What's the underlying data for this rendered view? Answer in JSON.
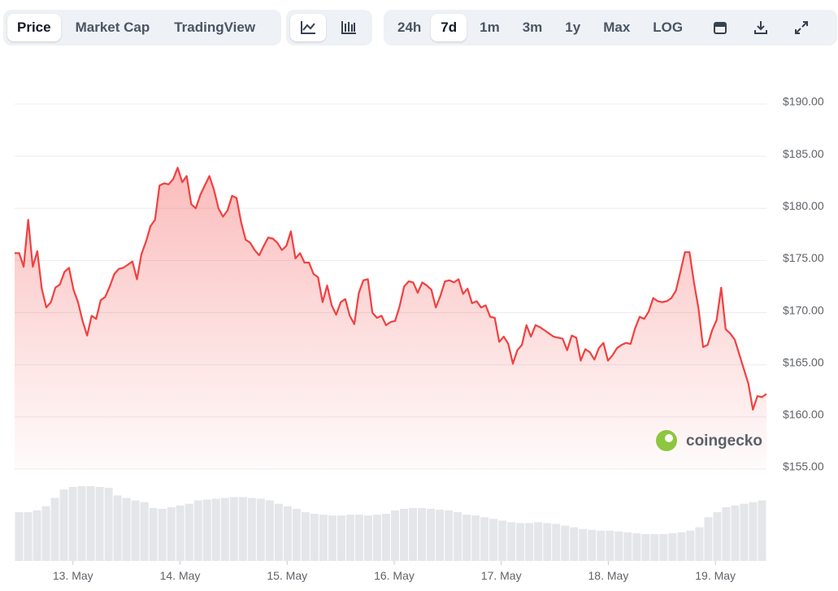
{
  "toolbar": {
    "views": [
      "Price",
      "Market Cap",
      "TradingView"
    ],
    "ranges": [
      "24h",
      "7d",
      "1m",
      "3m",
      "1y",
      "Max",
      "LOG"
    ]
  },
  "watermark": "coingecko",
  "chart_data": {
    "type": "line",
    "color": "#f2403f",
    "area": true,
    "grid": true,
    "xlim": [
      12.455,
      19.477
    ],
    "xticks": [
      {
        "value": 13,
        "label": "13. May"
      },
      {
        "value": 14,
        "label": "14. May"
      },
      {
        "value": 15,
        "label": "15. May"
      },
      {
        "value": 16,
        "label": "16. May"
      },
      {
        "value": 17,
        "label": "17. May"
      },
      {
        "value": 18,
        "label": "18. May"
      },
      {
        "value": 19,
        "label": "19. May"
      }
    ],
    "ylim": [
      155,
      190
    ],
    "yticks": [
      {
        "value": 155,
        "label": "$155.00"
      },
      {
        "value": 160,
        "label": "$160.00"
      },
      {
        "value": 165,
        "label": "$165.00"
      },
      {
        "value": 170,
        "label": "$170.00"
      },
      {
        "value": 175,
        "label": "$175.00"
      },
      {
        "value": 180,
        "label": "$180.00"
      },
      {
        "value": 185,
        "label": "$185.00"
      },
      {
        "value": 190,
        "label": "$190.00"
      }
    ],
    "values": [
      175.7,
      175.7,
      174.4,
      178.9,
      174.4,
      175.9,
      172.3,
      170.5,
      171.0,
      172.4,
      172.7,
      173.9,
      174.3,
      172.2,
      171.0,
      169.2,
      167.8,
      169.7,
      169.4,
      171.2,
      171.5,
      172.5,
      173.7,
      174.2,
      174.3,
      174.6,
      174.9,
      173.2,
      175.6,
      176.8,
      178.3,
      178.9,
      182.2,
      182.4,
      182.3,
      182.8,
      183.9,
      182.5,
      183.1,
      180.4,
      180.0,
      181.3,
      182.2,
      183.1,
      181.8,
      180.0,
      179.2,
      179.8,
      181.2,
      181.0,
      178.7,
      177.0,
      176.7,
      176.0,
      175.5,
      176.4,
      177.2,
      177.1,
      176.7,
      176.0,
      176.4,
      177.8,
      175.2,
      175.7,
      174.8,
      174.8,
      173.7,
      173.4,
      171.0,
      172.6,
      170.7,
      169.8,
      171.0,
      171.3,
      169.7,
      168.9,
      171.9,
      173.1,
      173.2,
      170.0,
      169.5,
      169.7,
      168.8,
      169.1,
      169.2,
      170.6,
      172.5,
      173.0,
      172.9,
      171.9,
      172.9,
      172.6,
      172.2,
      170.5,
      171.6,
      173.0,
      173.1,
      172.9,
      173.2,
      171.8,
      172.3,
      170.9,
      171.1,
      170.5,
      170.7,
      169.6,
      169.5,
      167.2,
      167.7,
      167.0,
      165.1,
      166.4,
      166.9,
      168.8,
      167.7,
      168.8,
      168.6,
      168.3,
      168.0,
      167.7,
      167.6,
      167.5,
      166.4,
      167.8,
      167.6,
      165.4,
      166.5,
      166.2,
      165.5,
      166.6,
      167.1,
      165.4,
      165.9,
      166.6,
      166.9,
      167.1,
      167.0,
      168.5,
      169.6,
      169.4,
      170.1,
      171.4,
      171.1,
      171.0,
      171.1,
      171.4,
      172.1,
      173.9,
      175.8,
      175.8,
      172.9,
      170.4,
      166.7,
      166.9,
      168.3,
      169.3,
      172.4,
      168.4,
      168.0,
      167.4,
      166.0,
      164.6,
      163.2,
      160.7,
      162.0,
      161.9,
      162.2
    ],
    "volume": {
      "color": "#e4e6ea",
      "values": [
        58,
        58,
        60,
        65,
        75,
        85,
        88,
        89,
        89,
        88,
        87,
        78,
        75,
        72,
        70,
        63,
        62,
        64,
        66,
        68,
        72,
        73,
        74,
        75,
        76,
        76,
        75,
        74,
        72,
        68,
        65,
        62,
        58,
        56,
        55,
        54,
        54,
        55,
        55,
        54,
        55,
        56,
        60,
        62,
        63,
        63,
        62,
        61,
        60,
        58,
        55,
        54,
        52,
        50,
        48,
        46,
        45,
        45,
        46,
        45,
        44,
        42,
        40,
        38,
        37,
        36,
        36,
        35,
        34,
        33,
        32,
        32,
        32,
        33,
        34,
        36,
        40,
        52,
        58,
        64,
        66,
        68,
        70,
        72
      ]
    }
  }
}
